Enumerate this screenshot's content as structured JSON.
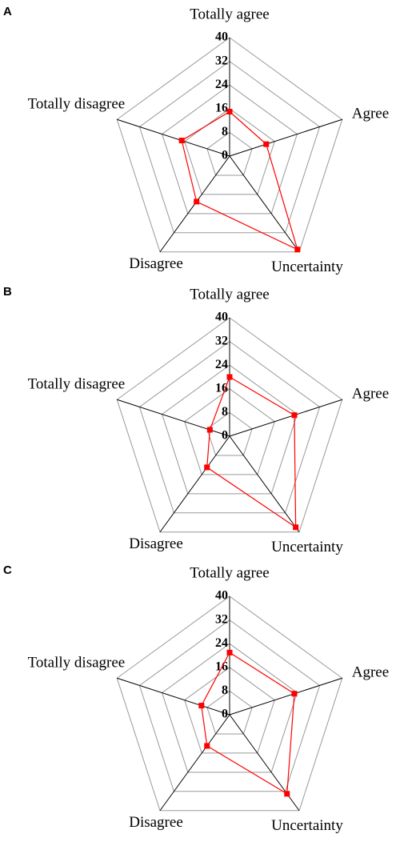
{
  "chart_data": [
    {
      "type": "radar",
      "panel": "A",
      "categories": [
        "Totally agree",
        "Agree",
        "Uncertainty",
        "Disagree",
        "Totally disagree"
      ],
      "values": [
        15,
        13,
        39,
        19,
        17
      ],
      "color": "#ff0000",
      "rlim": [
        0,
        40
      ],
      "rticks": [
        0,
        8,
        16,
        24,
        32,
        40
      ]
    },
    {
      "type": "radar",
      "panel": "B",
      "categories": [
        "Totally agree",
        "Agree",
        "Uncertainty",
        "Disagree",
        "Totally disagree"
      ],
      "values": [
        20,
        23,
        38,
        13,
        7
      ],
      "color": "#ff0000",
      "rlim": [
        0,
        40
      ],
      "rticks": [
        0,
        8,
        16,
        24,
        32,
        40
      ]
    },
    {
      "type": "radar",
      "panel": "C",
      "categories": [
        "Totally agree",
        "Agree",
        "Uncertainty",
        "Disagree",
        "Totally disagree"
      ],
      "values": [
        21,
        23,
        33,
        13,
        10
      ],
      "color": "#ff0000",
      "rlim": [
        0,
        40
      ],
      "rticks": [
        0,
        8,
        16,
        24,
        32,
        40
      ]
    }
  ]
}
